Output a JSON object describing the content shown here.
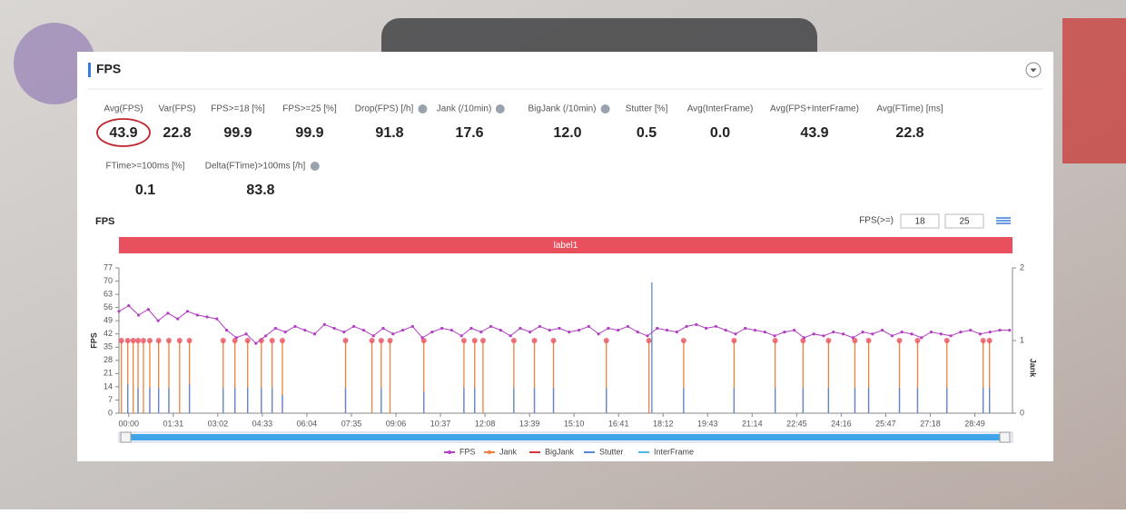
{
  "header": {
    "title": "FPS"
  },
  "metrics": [
    {
      "label": "Avg(FPS)",
      "value": "43.9"
    },
    {
      "label": "Var(FPS)",
      "value": "22.8"
    },
    {
      "label": "FPS>=18 [%]",
      "value": "99.9"
    },
    {
      "label": "FPS>=25 [%]",
      "value": "99.9"
    },
    {
      "label": "Drop(FPS) [/h]",
      "value": "91.8"
    },
    {
      "label": "Jank (/10min)",
      "value": "17.6"
    },
    {
      "label": "BigJank (/10min)",
      "value": "12.0"
    },
    {
      "label": "Stutter [%]",
      "value": "0.5"
    },
    {
      "label": "Avg(InterFrame)",
      "value": "0.0"
    },
    {
      "label": "Avg(FPS+InterFrame)",
      "value": "43.9"
    },
    {
      "label": "Avg(FTime) [ms]",
      "value": "22.8"
    },
    {
      "label": "FTime>=100ms [%]",
      "value": "0.1"
    },
    {
      "label": "Delta(FTime)>100ms [/h]",
      "value": "83.8"
    }
  ],
  "chart_data": {
    "type": "line",
    "title": "FPS",
    "threshold_label": "FPS(>=)",
    "thresholds": [
      18,
      25
    ],
    "band_label": "label1",
    "ylabel": "FPS",
    "y2label": "Jank",
    "xlim": [
      -20,
      1806
    ],
    "ylim": [
      0,
      77
    ],
    "y2lim": [
      0,
      2
    ],
    "yticks": [
      0,
      7,
      14,
      21,
      28,
      35,
      42,
      49,
      56,
      63,
      70,
      77
    ],
    "y2ticks": [
      0,
      1,
      2
    ],
    "xticks": [
      {
        "value": 0,
        "label": "00:00"
      },
      {
        "value": 91,
        "label": "01:31"
      },
      {
        "value": 182,
        "label": "03:02"
      },
      {
        "value": 273,
        "label": "04:33"
      },
      {
        "value": 364,
        "label": "06:04"
      },
      {
        "value": 455,
        "label": "07:35"
      },
      {
        "value": 546,
        "label": "09:06"
      },
      {
        "value": 637,
        "label": "10:37"
      },
      {
        "value": 728,
        "label": "12:08"
      },
      {
        "value": 819,
        "label": "13:39"
      },
      {
        "value": 910,
        "label": "15:10"
      },
      {
        "value": 1001,
        "label": "16:41"
      },
      {
        "value": 1092,
        "label": "18:12"
      },
      {
        "value": 1183,
        "label": "19:43"
      },
      {
        "value": 1274,
        "label": "21:14"
      },
      {
        "value": 1365,
        "label": "22:45"
      },
      {
        "value": 1456,
        "label": "24:16"
      },
      {
        "value": 1547,
        "label": "25:47"
      },
      {
        "value": 1638,
        "label": "27:18"
      },
      {
        "value": 1729,
        "label": "28:49"
      }
    ],
    "series": [
      {
        "name": "FPS",
        "color": "#b23fc4",
        "x": [
          -20,
          0,
          20,
          40,
          60,
          80,
          100,
          120,
          140,
          160,
          180,
          200,
          220,
          240,
          260,
          280,
          300,
          320,
          340,
          360,
          380,
          400,
          420,
          440,
          460,
          480,
          500,
          520,
          540,
          560,
          580,
          600,
          620,
          640,
          660,
          680,
          700,
          720,
          740,
          760,
          780,
          800,
          820,
          840,
          860,
          880,
          900,
          920,
          940,
          960,
          980,
          1000,
          1020,
          1040,
          1060,
          1080,
          1100,
          1120,
          1140,
          1160,
          1180,
          1200,
          1220,
          1240,
          1260,
          1280,
          1300,
          1320,
          1340,
          1360,
          1380,
          1400,
          1420,
          1440,
          1460,
          1480,
          1500,
          1520,
          1540,
          1560,
          1580,
          1600,
          1620,
          1640,
          1660,
          1680,
          1700,
          1720,
          1740,
          1760,
          1780,
          1800
        ],
        "values": [
          54,
          57,
          52,
          55,
          49,
          53,
          50,
          54,
          52,
          51,
          50,
          44,
          40,
          42,
          37,
          41,
          45,
          43,
          46,
          44,
          42,
          47,
          45,
          43,
          46,
          44,
          41,
          45,
          42,
          44,
          46,
          40,
          43,
          45,
          44,
          41,
          45,
          43,
          46,
          44,
          41,
          45,
          43,
          46,
          44,
          45,
          43,
          44,
          46,
          42,
          45,
          44,
          46,
          43,
          41,
          45,
          44,
          43,
          46,
          47,
          45,
          46,
          44,
          42,
          45,
          44,
          43,
          41,
          43,
          44,
          40,
          42,
          41,
          43,
          42,
          40,
          43,
          42,
          44,
          41,
          43,
          42,
          40,
          43,
          42,
          41,
          43,
          44,
          42,
          43,
          44,
          44
        ]
      },
      {
        "name": "Jank",
        "color": "#f0803c",
        "axis": "y2",
        "x": [
          -15,
          -2,
          9,
          19,
          30,
          43,
          61,
          82,
          104,
          124,
          193,
          217,
          243,
          271,
          293,
          314,
          443,
          497,
          516,
          534,
          603,
          685,
          707,
          724,
          787,
          829,
          868,
          976,
          1063,
          1134,
          1237,
          1321,
          1378,
          1430,
          1484,
          1512,
          1575,
          1612,
          1672,
          1746,
          1759
        ],
        "values": [
          1,
          1,
          1,
          1,
          1,
          1,
          1,
          1,
          1,
          1,
          1,
          1,
          1,
          1,
          1,
          1,
          1,
          1,
          1,
          1,
          1,
          1,
          1,
          1,
          1,
          1,
          1,
          1,
          1,
          1,
          1,
          1,
          1,
          1,
          1,
          1,
          1,
          1,
          1,
          1,
          1
        ]
      },
      {
        "name": "BigJank",
        "color": "#d9363e",
        "axis": "y2",
        "x": [],
        "values": []
      },
      {
        "name": "Stutter",
        "color": "#5b86d6",
        "axis": "y2",
        "x": [
          -2,
          19,
          43,
          61,
          82,
          124,
          193,
          217,
          243,
          271,
          293,
          314,
          443,
          516,
          603,
          685,
          707,
          787,
          829,
          868,
          976,
          1069,
          1134,
          1237,
          1321,
          1378,
          1430,
          1484,
          1512,
          1575,
          1612,
          1672,
          1746,
          1759
        ],
        "values": [
          0.4,
          0.35,
          0.35,
          0.35,
          0.35,
          0.4,
          0.35,
          0.35,
          0.35,
          0.35,
          0.35,
          0.25,
          0.35,
          0.35,
          0.3,
          0.35,
          0.35,
          0.35,
          0.35,
          0.35,
          0.35,
          1.8,
          0.35,
          0.35,
          0.35,
          0.35,
          0.35,
          0.35,
          0.35,
          0.35,
          0.35,
          0.35,
          0.35,
          0.35
        ]
      },
      {
        "name": "InterFrame",
        "color": "#4fb8e8",
        "axis": "y2",
        "x": [],
        "values": []
      }
    ]
  }
}
